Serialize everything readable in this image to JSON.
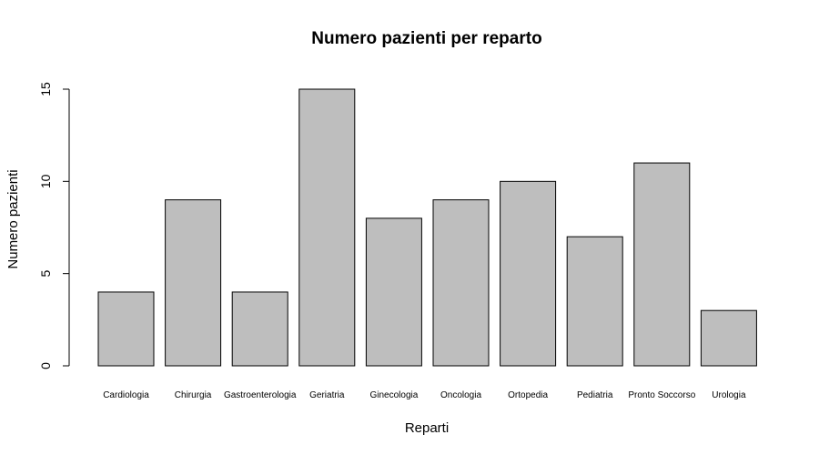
{
  "chart_data": {
    "type": "bar",
    "title": "Numero pazienti per reparto",
    "xlabel": "Reparti",
    "ylabel": "Numero pazienti",
    "categories": [
      "Cardiologia",
      "Chirurgia",
      "Gastroenterologia",
      "Geriatria",
      "Ginecologia",
      "Oncologia",
      "Ortopedia",
      "Pediatria",
      "Pronto Soccorso",
      "Urologia"
    ],
    "values": [
      4,
      9,
      4,
      15,
      8,
      9,
      10,
      7,
      11,
      3
    ],
    "yticks": [
      "0",
      "5",
      "10",
      "15"
    ],
    "ylim": [
      0,
      15
    ],
    "bar_color": "#bebebe",
    "edge_color": "#000000",
    "grid": false,
    "legend": false
  }
}
